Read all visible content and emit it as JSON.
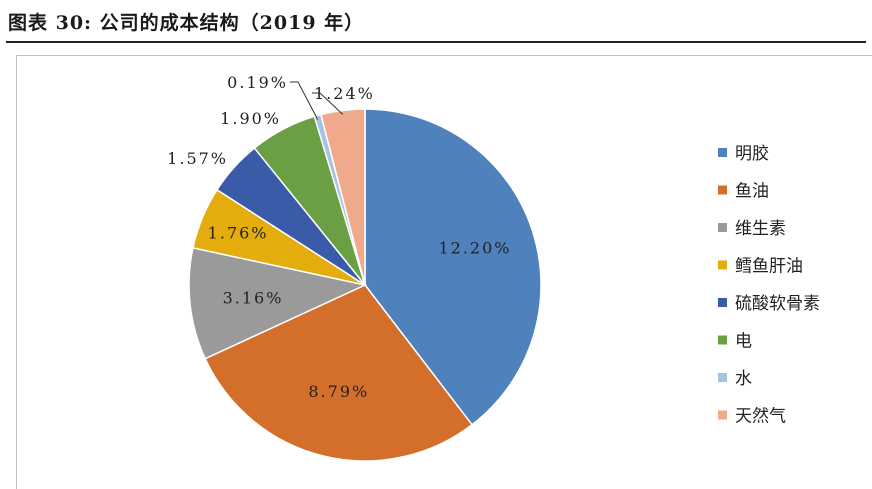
{
  "figure": {
    "title": "图表 30:  公司的成本结构（2019 年）"
  },
  "chart_data": {
    "type": "pie",
    "title": "",
    "labels": [
      "明胶",
      "鱼油",
      "维生素",
      "鳕鱼肝油",
      "硫酸软骨素",
      "电",
      "水",
      "天然气"
    ],
    "values": [
      12.2,
      8.79,
      3.16,
      1.76,
      1.57,
      1.9,
      0.19,
      1.24
    ],
    "value_labels": [
      "12.20%",
      "8.79%",
      "3.16%",
      "1.76%",
      "1.57%",
      "1.90%",
      "0.19%",
      "1.24%"
    ],
    "colors": [
      "#4f81bd",
      "#d46e2b",
      "#9a9a9a",
      "#e4ac0c",
      "#3a5ba8",
      "#6aa043",
      "#a6c3e4",
      "#f1a98b"
    ],
    "start_angle": "12 o'clock",
    "direction": "clockwise",
    "legend_position": "right"
  }
}
